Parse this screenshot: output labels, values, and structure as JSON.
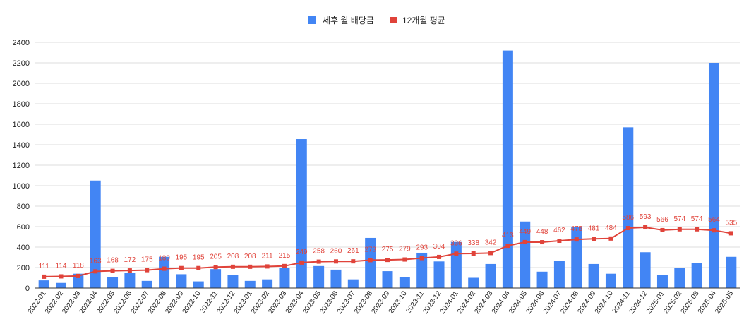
{
  "chart_data": {
    "type": "bar",
    "categories": [
      "2022-01",
      "2022-02",
      "2022-03",
      "2022-04",
      "2022-05",
      "2022-06",
      "2022-07",
      "2022-08",
      "2022-09",
      "2022-10",
      "2022-11",
      "2022-12",
      "2023-01",
      "2023-02",
      "2023-03",
      "2023-04",
      "2023-05",
      "2023-06",
      "2023-07",
      "2023-08",
      "2023-09",
      "2023-10",
      "2023-11",
      "2023-12",
      "2024-01",
      "2024-02",
      "2024-03",
      "2024-04",
      "2024-05",
      "2024-06",
      "2024-07",
      "2024-08",
      "2024-09",
      "2024-10",
      "2024-11",
      "2024-12",
      "2025-01",
      "2025-02",
      "2025-03",
      "2025-04",
      "2025-05"
    ],
    "series": [
      {
        "name": "세후 월 배당금",
        "type": "bar",
        "color": "#4285f4",
        "values": [
          75,
          50,
          140,
          1050,
          110,
          150,
          70,
          305,
          135,
          65,
          185,
          125,
          70,
          85,
          195,
          1455,
          215,
          180,
          85,
          490,
          165,
          110,
          345,
          260,
          450,
          100,
          235,
          2320,
          650,
          160,
          265,
          600,
          235,
          140,
          1570,
          350,
          125,
          200,
          245,
          2200,
          305
        ]
      },
      {
        "name": "12개월 평균",
        "type": "line",
        "color": "#e0433a",
        "values": [
          111,
          114,
          118,
          163,
          168,
          172,
          175,
          189,
          195,
          195,
          205,
          208,
          208,
          211,
          215,
          249,
          258,
          260,
          261,
          273,
          275,
          279,
          293,
          304,
          336,
          338,
          342,
          413,
          449,
          448,
          462,
          475,
          481,
          484,
          586,
          593,
          566,
          574,
          574,
          564,
          535
        ]
      }
    ],
    "y_ticks": [
      "0",
      "200",
      "400",
      "600",
      "800",
      "1000",
      "1200",
      "1400",
      "1600",
      "1800",
      "2000",
      "2200",
      "2400"
    ],
    "ylim": [
      0,
      2400
    ],
    "grid": true,
    "legend_position": "top-center"
  }
}
